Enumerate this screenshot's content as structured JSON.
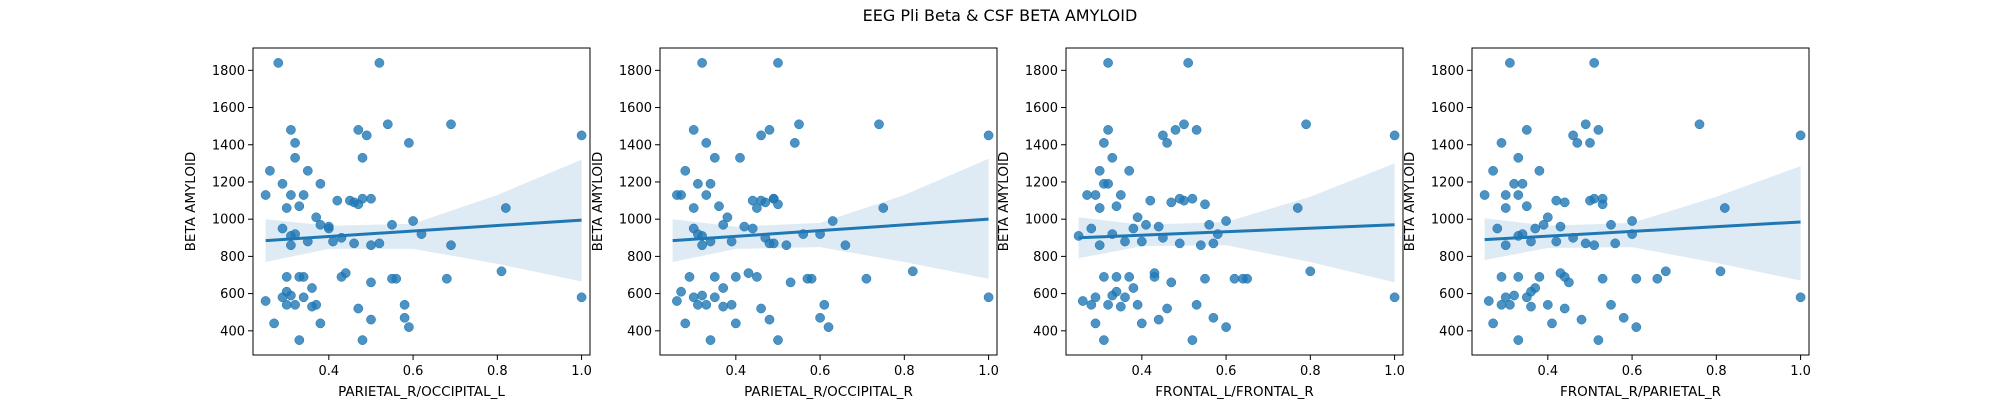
{
  "figure": {
    "title": "EEG Pli Beta & CSF BETA AMYLOID",
    "point_color": "#1f77b4"
  },
  "chart_data": [
    {
      "type": "scatter",
      "xlabel": "PARIETAL_R/OCCIPITAL_L",
      "ylabel": "BETA AMYLOID",
      "xlim": [
        0.22,
        1.02
      ],
      "ylim": [
        270,
        1920
      ],
      "xticks": [
        0.4,
        0.6,
        0.8,
        1.0
      ],
      "xtick_labels": [
        "0.4",
        "0.6",
        "0.8",
        "1.0"
      ],
      "yticks": [
        400,
        600,
        800,
        1000,
        1200,
        1400,
        1600,
        1800
      ],
      "ytick_labels": [
        "400",
        "600",
        "800",
        "1000",
        "1200",
        "1400",
        "1600",
        "1800"
      ],
      "regression": {
        "x": [
          0.25,
          1.0
        ],
        "y": [
          885,
          995
        ]
      },
      "ci_band": {
        "x": [
          0.25,
          0.4,
          0.6,
          0.8,
          1.0
        ],
        "lower": [
          770,
          840,
          840,
          760,
          665
        ],
        "upper": [
          1000,
          965,
          975,
          1130,
          1320
        ]
      },
      "x": [
        0.28,
        0.52,
        0.69,
        0.54,
        0.31,
        0.47,
        0.49,
        0.59,
        0.32,
        1.0,
        0.26,
        0.32,
        0.35,
        0.38,
        0.29,
        0.31,
        0.48,
        0.5,
        0.42,
        0.46,
        0.48,
        0.3,
        0.33,
        0.37,
        0.55,
        0.6,
        0.82,
        0.25,
        0.34,
        0.38,
        0.4,
        0.45,
        0.47,
        0.62,
        0.69,
        0.29,
        0.32,
        0.4,
        0.41,
        0.43,
        0.46,
        0.35,
        0.31,
        0.5,
        0.52,
        0.56,
        0.3,
        0.33,
        0.36,
        0.5,
        0.58,
        0.25,
        0.29,
        0.31,
        0.34,
        0.37,
        0.43,
        0.55,
        0.68,
        0.81,
        0.34,
        0.32,
        0.36,
        0.47,
        0.58,
        0.3,
        0.33,
        0.27,
        0.38,
        0.44,
        0.48,
        1.0,
        0.31,
        0.5,
        0.59,
        0.3
      ],
      "y": [
        1840,
        1840,
        1510,
        1510,
        1480,
        1480,
        1450,
        1410,
        1410,
        1450,
        1260,
        1330,
        1260,
        1190,
        1190,
        1130,
        1330,
        1110,
        1100,
        1090,
        1110,
        1060,
        1070,
        1010,
        970,
        990,
        1060,
        1130,
        1130,
        970,
        960,
        1100,
        1080,
        920,
        860,
        950,
        920,
        950,
        880,
        900,
        870,
        880,
        860,
        860,
        870,
        680,
        690,
        690,
        630,
        660,
        540,
        560,
        580,
        590,
        580,
        540,
        690,
        680,
        680,
        720,
        690,
        540,
        530,
        520,
        470,
        540,
        350,
        440,
        440,
        710,
        350,
        580,
        910,
        460,
        420,
        610
      ]
    },
    {
      "type": "scatter",
      "xlabel": "PARIETAL_R/OCCIPITAL_R",
      "ylabel": "BETA AMYLOID",
      "xlim": [
        0.22,
        1.02
      ],
      "ylim": [
        270,
        1920
      ],
      "xticks": [
        0.4,
        0.6,
        0.8,
        1.0
      ],
      "xtick_labels": [
        "0.4",
        "0.6",
        "0.8",
        "1.0"
      ],
      "yticks": [
        400,
        600,
        800,
        1000,
        1200,
        1400,
        1600,
        1800
      ],
      "ytick_labels": [
        "400",
        "600",
        "800",
        "1000",
        "1200",
        "1400",
        "1600",
        "1800"
      ],
      "regression": {
        "x": [
          0.25,
          1.0
        ],
        "y": [
          885,
          1000
        ]
      },
      "ci_band": {
        "x": [
          0.25,
          0.4,
          0.6,
          0.8,
          1.0
        ],
        "lower": [
          770,
          840,
          850,
          770,
          680
        ],
        "upper": [
          1000,
          960,
          980,
          1130,
          1325
        ]
      },
      "x": [
        0.32,
        0.5,
        0.55,
        0.74,
        0.3,
        0.48,
        0.46,
        0.54,
        0.33,
        1.0,
        0.28,
        0.35,
        0.41,
        0.34,
        0.31,
        0.27,
        0.45,
        0.49,
        0.44,
        0.47,
        0.49,
        0.3,
        0.36,
        0.38,
        0.6,
        0.63,
        0.75,
        0.26,
        0.33,
        0.37,
        0.42,
        0.46,
        0.5,
        0.56,
        0.66,
        0.3,
        0.31,
        0.44,
        0.39,
        0.47,
        0.48,
        0.34,
        0.32,
        0.52,
        0.49,
        0.58,
        0.29,
        0.35,
        0.37,
        0.53,
        0.61,
        0.26,
        0.3,
        0.32,
        0.35,
        0.39,
        0.45,
        0.57,
        0.71,
        0.82,
        0.4,
        0.33,
        0.37,
        0.46,
        0.6,
        0.31,
        0.34,
        0.28,
        0.4,
        0.43,
        0.5,
        1.0,
        0.32,
        0.48,
        0.62,
        0.27
      ],
      "y": [
        1840,
        1840,
        1510,
        1510,
        1480,
        1480,
        1450,
        1410,
        1410,
        1450,
        1260,
        1330,
        1330,
        1190,
        1190,
        1130,
        1060,
        1110,
        1100,
        1090,
        1110,
        1060,
        1070,
        1010,
        920,
        990,
        1060,
        1130,
        1130,
        970,
        960,
        1100,
        1080,
        920,
        860,
        950,
        920,
        950,
        880,
        900,
        870,
        880,
        860,
        860,
        870,
        680,
        690,
        690,
        630,
        660,
        540,
        560,
        580,
        590,
        580,
        540,
        690,
        680,
        680,
        720,
        690,
        540,
        530,
        520,
        470,
        540,
        350,
        440,
        440,
        710,
        350,
        580,
        910,
        460,
        420,
        610
      ]
    },
    {
      "type": "scatter",
      "xlabel": "FRONTAL_L/FRONTAL_R",
      "ylabel": "BETA AMYLOID",
      "xlim": [
        0.22,
        1.02
      ],
      "ylim": [
        270,
        1920
      ],
      "xticks": [
        0.4,
        0.6,
        0.8,
        1.0
      ],
      "xtick_labels": [
        "0.4",
        "0.6",
        "0.8",
        "1.0"
      ],
      "yticks": [
        400,
        600,
        800,
        1000,
        1200,
        1400,
        1600,
        1800
      ],
      "ytick_labels": [
        "400",
        "600",
        "800",
        "1000",
        "1200",
        "1400",
        "1600",
        "1800"
      ],
      "regression": {
        "x": [
          0.25,
          1.0
        ],
        "y": [
          900,
          970
        ]
      },
      "ci_band": {
        "x": [
          0.25,
          0.4,
          0.6,
          0.8,
          1.0
        ],
        "lower": [
          790,
          855,
          860,
          770,
          660
        ],
        "upper": [
          1010,
          970,
          985,
          1120,
          1300
        ]
      },
      "x": [
        0.32,
        0.51,
        0.5,
        0.79,
        0.32,
        0.48,
        0.53,
        0.46,
        0.31,
        1.0,
        0.3,
        0.33,
        0.37,
        0.31,
        0.32,
        0.29,
        0.45,
        0.49,
        0.42,
        0.47,
        0.52,
        0.3,
        0.34,
        0.39,
        0.56,
        0.6,
        0.77,
        0.27,
        0.35,
        0.41,
        0.44,
        0.5,
        0.55,
        0.58,
        0.62,
        0.28,
        0.33,
        0.38,
        0.4,
        0.45,
        0.49,
        0.36,
        0.3,
        0.54,
        0.57,
        0.64,
        0.31,
        0.34,
        0.38,
        0.47,
        0.53,
        0.26,
        0.29,
        0.33,
        0.36,
        0.39,
        0.43,
        0.55,
        0.65,
        0.8,
        0.37,
        0.32,
        0.35,
        0.46,
        0.57,
        0.28,
        0.31,
        0.29,
        0.4,
        0.43,
        0.52,
        1.0,
        0.25,
        0.44,
        0.6,
        0.34
      ],
      "y": [
        1840,
        1840,
        1510,
        1510,
        1480,
        1480,
        1480,
        1410,
        1410,
        1450,
        1260,
        1330,
        1260,
        1190,
        1190,
        1130,
        1450,
        1110,
        1100,
        1090,
        1110,
        1060,
        1070,
        1010,
        970,
        990,
        1060,
        1130,
        1130,
        970,
        960,
        1100,
        1080,
        920,
        680,
        950,
        920,
        950,
        880,
        900,
        870,
        880,
        860,
        860,
        870,
        680,
        690,
        690,
        630,
        660,
        540,
        560,
        580,
        590,
        580,
        540,
        690,
        680,
        680,
        720,
        690,
        540,
        530,
        520,
        470,
        540,
        350,
        440,
        440,
        710,
        350,
        580,
        910,
        460,
        420,
        610
      ]
    },
    {
      "type": "scatter",
      "xlabel": "FRONTAL_R/PARIETAL_R",
      "ylabel": "BETA AMYLOID",
      "xlim": [
        0.22,
        1.02
      ],
      "ylim": [
        270,
        1920
      ],
      "xticks": [
        0.4,
        0.6,
        0.8,
        1.0
      ],
      "xtick_labels": [
        "0.4",
        "0.6",
        "0.8",
        "1.0"
      ],
      "yticks": [
        400,
        600,
        800,
        1000,
        1200,
        1400,
        1600,
        1800
      ],
      "ytick_labels": [
        "400",
        "600",
        "800",
        "1000",
        "1200",
        "1400",
        "1600",
        "1800"
      ],
      "regression": {
        "x": [
          0.25,
          1.0
        ],
        "y": [
          890,
          985
        ]
      },
      "ci_band": {
        "x": [
          0.25,
          0.4,
          0.6,
          0.8,
          1.0
        ],
        "lower": [
          780,
          845,
          850,
          765,
          670
        ],
        "upper": [
          1005,
          965,
          980,
          1120,
          1285
        ]
      },
      "x": [
        0.31,
        0.51,
        0.49,
        0.76,
        0.35,
        0.52,
        0.46,
        0.5,
        0.29,
        1.0,
        0.27,
        0.33,
        0.38,
        0.32,
        0.34,
        0.3,
        0.47,
        0.51,
        0.42,
        0.44,
        0.53,
        0.3,
        0.35,
        0.4,
        0.55,
        0.6,
        0.82,
        0.25,
        0.33,
        0.39,
        0.43,
        0.5,
        0.53,
        0.6,
        0.68,
        0.28,
        0.34,
        0.37,
        0.42,
        0.46,
        0.49,
        0.36,
        0.3,
        0.51,
        0.56,
        0.61,
        0.29,
        0.33,
        0.37,
        0.45,
        0.55,
        0.26,
        0.3,
        0.32,
        0.35,
        0.4,
        0.44,
        0.53,
        0.66,
        0.81,
        0.38,
        0.31,
        0.36,
        0.44,
        0.58,
        0.29,
        0.33,
        0.27,
        0.41,
        0.43,
        0.52,
        1.0,
        0.33,
        0.48,
        0.61,
        0.36
      ],
      "y": [
        1840,
        1840,
        1510,
        1510,
        1480,
        1480,
        1450,
        1410,
        1410,
        1450,
        1260,
        1330,
        1260,
        1190,
        1190,
        1130,
        1410,
        1110,
        1100,
        1090,
        1110,
        1060,
        1070,
        1010,
        970,
        990,
        1060,
        1130,
        1130,
        970,
        960,
        1100,
        1080,
        920,
        720,
        950,
        920,
        950,
        880,
        900,
        870,
        880,
        860,
        860,
        870,
        680,
        690,
        690,
        630,
        660,
        540,
        560,
        580,
        590,
        580,
        540,
        690,
        680,
        680,
        720,
        690,
        540,
        530,
        520,
        470,
        540,
        350,
        440,
        440,
        710,
        350,
        580,
        910,
        460,
        420,
        610
      ]
    }
  ]
}
